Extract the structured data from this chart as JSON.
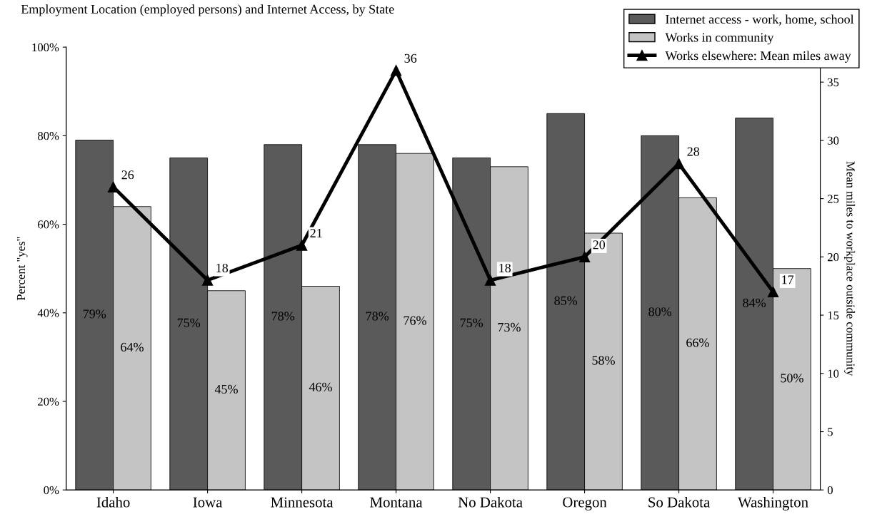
{
  "chart_data": {
    "type": "bar",
    "title": "Employment Location (employed persons) and Internet Access, by State",
    "categories": [
      "Idaho",
      "Iowa",
      "Minnesota",
      "Montana",
      "No Dakota",
      "Oregon",
      "So Dakota",
      "Washington"
    ],
    "series": [
      {
        "name": "Internet access - work, home, school",
        "color": "#5a5a5a",
        "values": [
          79,
          75,
          78,
          78,
          75,
          85,
          80,
          84
        ],
        "value_labels": [
          "79%",
          "75%",
          "78%",
          "78%",
          "75%",
          "85%",
          "80%",
          "84%"
        ]
      },
      {
        "name": "Works in community",
        "color": "#c4c4c4",
        "values": [
          64,
          45,
          46,
          76,
          73,
          58,
          66,
          50
        ],
        "value_labels": [
          "64%",
          "45%",
          "46%",
          "76%",
          "73%",
          "58%",
          "66%",
          "50%"
        ]
      },
      {
        "name": "Works elsewhere: Mean miles away",
        "type": "line",
        "axis": "y2",
        "color": "#000000",
        "marker": "triangle",
        "values": [
          26,
          18,
          21,
          36,
          18,
          20,
          28,
          17
        ],
        "value_labels": [
          "26",
          "18",
          "21",
          "36",
          "18",
          "20",
          "28",
          "17"
        ]
      }
    ],
    "ylabel": "Percent \"yes\"",
    "y2label": "Mean miles to workplace outside community",
    "ylim": [
      0,
      100
    ],
    "yticks": [
      {
        "value": 0,
        "label": "0%"
      },
      {
        "value": 20,
        "label": "20%"
      },
      {
        "value": 40,
        "label": "40%"
      },
      {
        "value": 60,
        "label": "60%"
      },
      {
        "value": 80,
        "label": "80%"
      },
      {
        "value": 100,
        "label": "100%"
      }
    ],
    "y2lim": [
      0,
      38
    ],
    "y2ticks": [
      0,
      5,
      10,
      15,
      20,
      25,
      30,
      35
    ],
    "legend": "top right",
    "grid": false
  }
}
